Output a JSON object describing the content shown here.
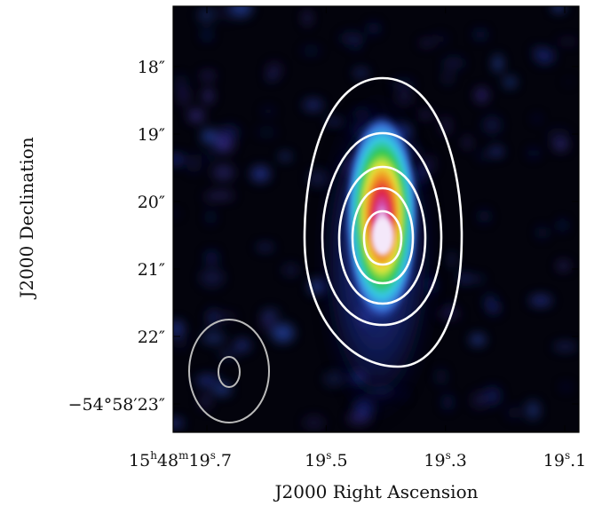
{
  "figure": {
    "xlabel": "J2000 Right Ascension",
    "ylabel": "J2000 Declination",
    "x_ticks": [
      {
        "ra_s": 19.7,
        "prefix": "15",
        "h": "h",
        "m_val": "48",
        "m": "m",
        "s_val": "19",
        "s": "s",
        "frac": ".7"
      },
      {
        "ra_s": 19.5,
        "s_val": "19",
        "s": "s",
        "frac": ".5"
      },
      {
        "ra_s": 19.3,
        "s_val": "19",
        "s": "s",
        "frac": ".3"
      },
      {
        "ra_s": 19.1,
        "s_val": "19",
        "s": "s",
        "frac": ".1"
      }
    ],
    "y_ticks": [
      {
        "dec_arcsec": 18,
        "label": "18″"
      },
      {
        "dec_arcsec": 19,
        "label": "19″"
      },
      {
        "dec_arcsec": 20,
        "label": "20″"
      },
      {
        "dec_arcsec": 21,
        "label": "21″"
      },
      {
        "dec_arcsec": 22,
        "label": "22″"
      },
      {
        "dec_arcsec": 23,
        "label": "−54°58′23″"
      }
    ],
    "contour_levels": 5,
    "contour_color": "#ffffff",
    "beam_color": "#bbbbbb",
    "colormap": [
      "#000000",
      "#1a2a8a",
      "#3a6fd8",
      "#35c8e8",
      "#2ec84a",
      "#e8e83a",
      "#f08a20",
      "#e02040",
      "#c040b0",
      "#f0e0f8"
    ]
  }
}
